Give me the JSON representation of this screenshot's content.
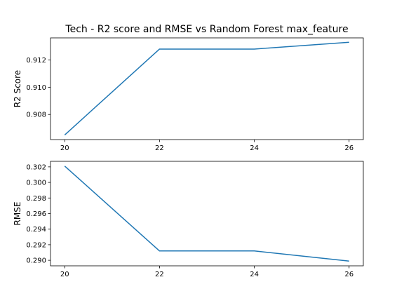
{
  "chart_data": {
    "title": "Tech - R2 score and RMSE vs Random Forest max_feature",
    "type": "line",
    "line_color": "#1f77b4",
    "panels": [
      {
        "ylabel": "R2 Score",
        "x": [
          20,
          22,
          24,
          26
        ],
        "y": [
          0.9065,
          0.9128,
          0.9128,
          0.9133
        ],
        "xlim": [
          19.7,
          26.3
        ],
        "ylim": [
          0.90616,
          0.91362
        ],
        "xticks": [
          "20",
          "22",
          "24",
          "26"
        ],
        "yticks": [
          "0.908",
          "0.910",
          "0.912"
        ],
        "ytick_values": [
          0.908,
          0.91,
          0.912
        ]
      },
      {
        "ylabel": "RMSE",
        "x": [
          20,
          22,
          24,
          26
        ],
        "y": [
          0.3021,
          0.2912,
          0.2912,
          0.2899
        ],
        "xlim": [
          19.7,
          26.3
        ],
        "ylim": [
          0.28929,
          0.30271
        ],
        "xticks": [
          "20",
          "22",
          "24",
          "26"
        ],
        "yticks": [
          "0.302",
          "0.300",
          "0.298",
          "0.296",
          "0.294",
          "0.292",
          "0.290"
        ],
        "ytick_values": [
          0.302,
          0.3,
          0.298,
          0.296,
          0.294,
          0.292,
          0.29
        ]
      }
    ]
  }
}
